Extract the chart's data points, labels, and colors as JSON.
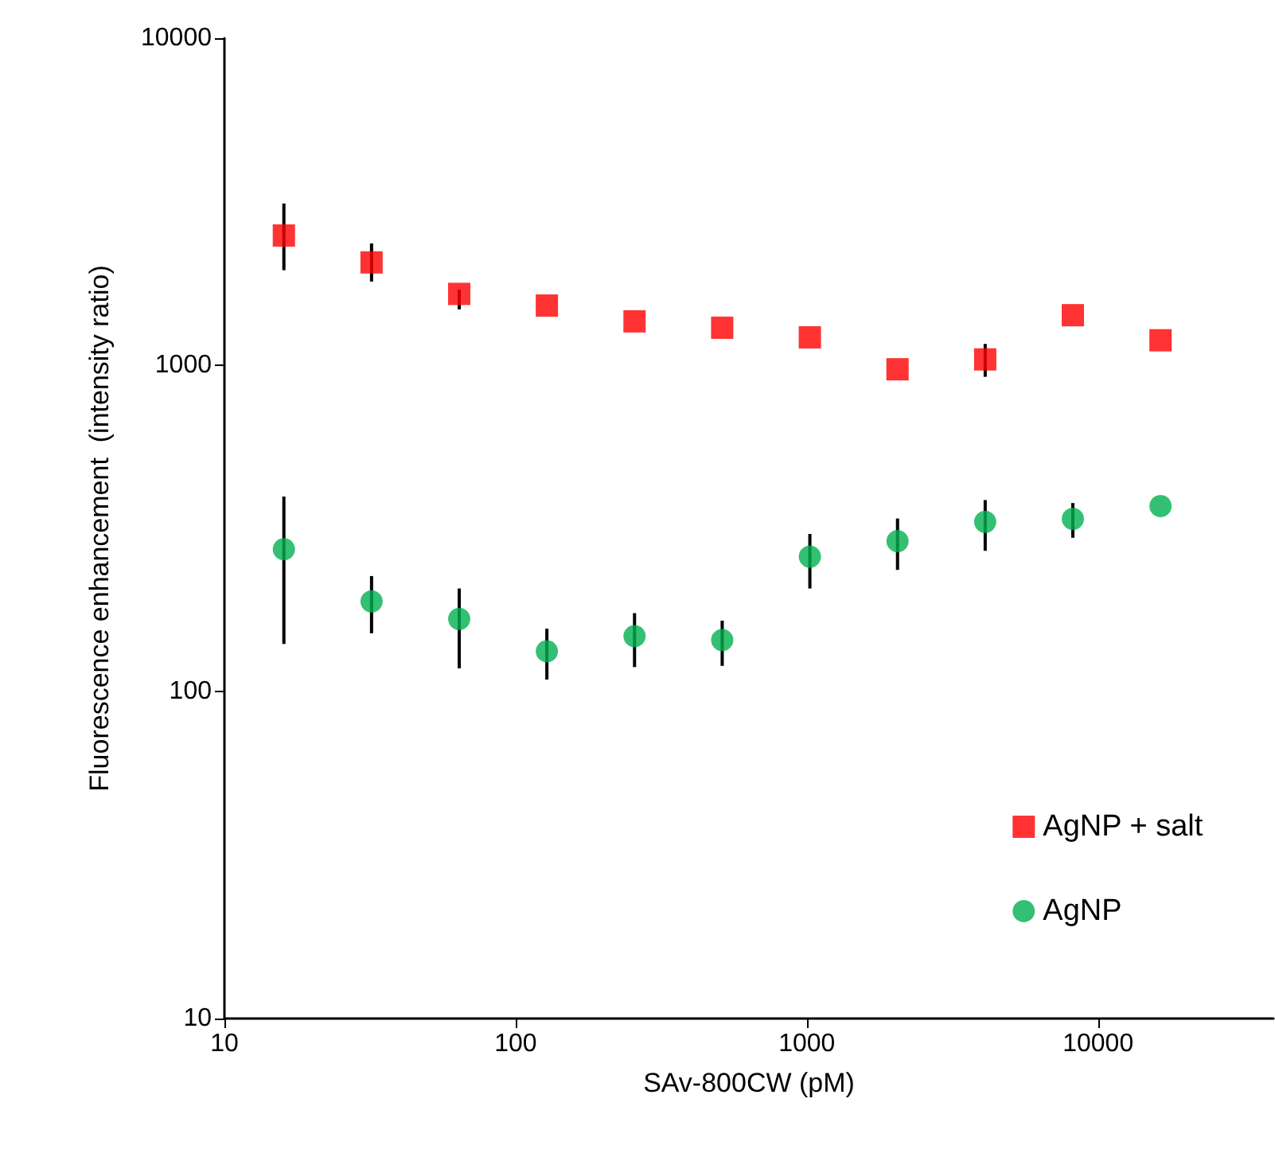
{
  "chart_data": {
    "type": "scatter",
    "xlabel": "SAv-800CW (pM)",
    "ylabel": "Fluorescence enhancement  (intensity ratio)",
    "log": "xy",
    "xlim": [
      10,
      40000
    ],
    "xticks": [
      10,
      100,
      1000,
      10000
    ],
    "ylim": [
      10,
      10000
    ],
    "yticks": [
      10,
      100,
      1000,
      10000
    ],
    "grid": false,
    "legend": "bottom right",
    "x": [
      16,
      32,
      64,
      128,
      256,
      512,
      1024,
      2048,
      4096,
      8192,
      16384
    ],
    "series": [
      {
        "name": "AgNP + salt",
        "color": "#ff0000",
        "marker": "square",
        "values": [
          2490,
          2060,
          1650,
          1520,
          1360,
          1300,
          1215,
          970,
          1040,
          1420,
          1190
        ],
        "errors": [
          [
            1950,
            3120
          ],
          [
            1800,
            2355
          ],
          [
            1480,
            1700
          ],
          null,
          null,
          null,
          null,
          null,
          [
            920,
            1160
          ],
          null,
          null
        ]
      },
      {
        "name": "AgNP",
        "color": "#00b050",
        "marker": "circle",
        "values": [
          273,
          189,
          167,
          133,
          148,
          144,
          259,
          289,
          331,
          338,
          370
        ],
        "errors": [
          [
            140,
            396
          ],
          [
            151,
            226
          ],
          [
            118,
            207
          ],
          [
            109,
            156
          ],
          [
            119,
            174
          ],
          [
            120,
            165
          ],
          [
            207,
            304
          ],
          [
            236,
            339
          ],
          [
            270,
            386
          ],
          [
            296,
            378
          ],
          null
        ]
      }
    ]
  }
}
